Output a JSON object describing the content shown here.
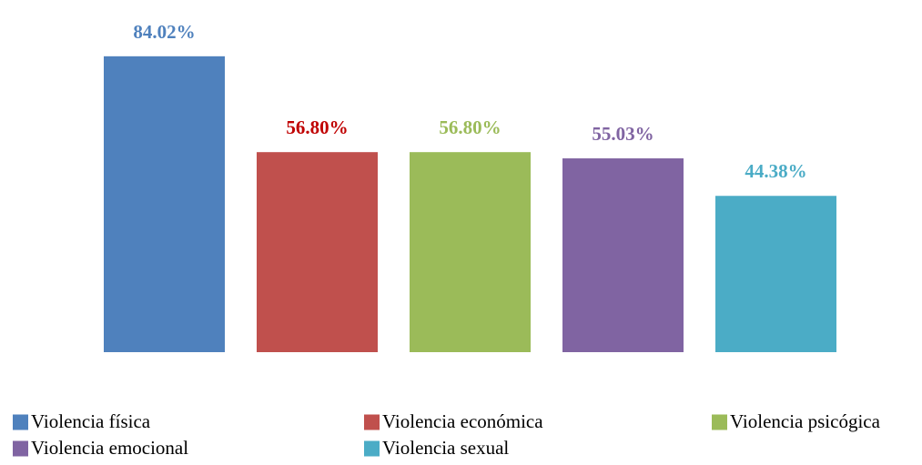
{
  "chart_data": {
    "type": "bar",
    "categories": [
      "Violencia física",
      "Violencia económica",
      "Violencia psicógica",
      "Violencia emocional",
      "Violencia sexual"
    ],
    "values": [
      84.02,
      56.8,
      56.8,
      55.03,
      44.38
    ],
    "data_labels": [
      "84.02%",
      "56.80%",
      "56.80%",
      "55.03%",
      "44.38%"
    ],
    "colors": [
      "#4f81bd",
      "#c0504d",
      "#9bbb59",
      "#8064a2",
      "#4bacc6"
    ],
    "label_colors": [
      "#4f81bd",
      "#c00000",
      "#9bbb59",
      "#8064a2",
      "#4bacc6"
    ],
    "ylim": [
      0,
      100
    ],
    "grid": false,
    "legend": "bottom",
    "title": "",
    "xlabel": "",
    "ylabel": ""
  }
}
